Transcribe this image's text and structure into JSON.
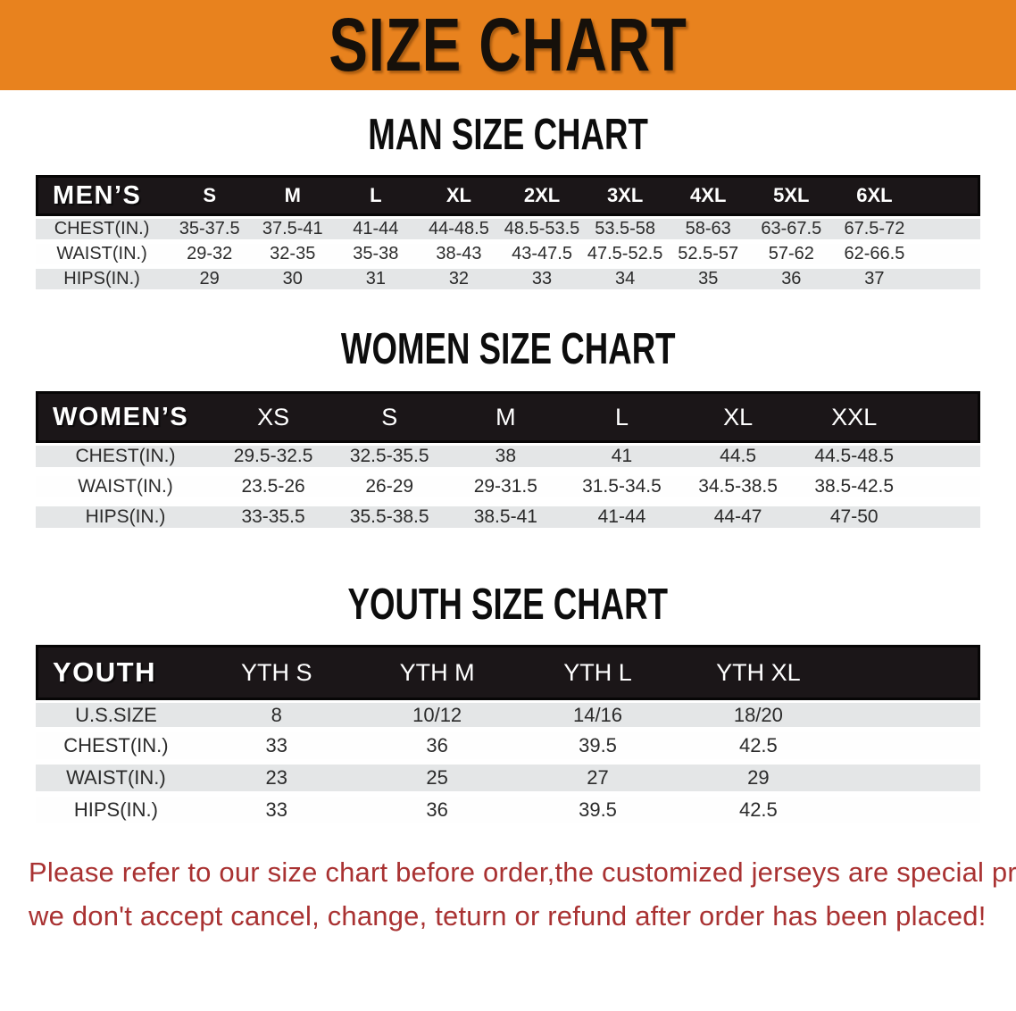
{
  "banner": {
    "title": "SIZE CHART"
  },
  "sections": [
    {
      "id": "men",
      "heading": "MAN SIZE CHART",
      "table": {
        "header_label": "MEN’S",
        "columns": [
          "S",
          "M",
          "L",
          "XL",
          "2XL",
          "3XL",
          "4XL",
          "5XL",
          "6XL"
        ],
        "rows": [
          {
            "label": "CHEST(IN.)",
            "values": [
              "35-37.5",
              "37.5-41",
              "41-44",
              "44-48.5",
              "48.5-53.5",
              "53.5-58",
              "58-63",
              "63-67.5",
              "67.5-72"
            ]
          },
          {
            "label": "WAIST(IN.)",
            "values": [
              "29-32",
              "32-35",
              "35-38",
              "38-43",
              "43-47.5",
              "47.5-52.5",
              "52.5-57",
              "57-62",
              "62-66.5"
            ]
          },
          {
            "label": "HIPS(IN.)",
            "values": [
              "29",
              "30",
              "31",
              "32",
              "33",
              "34",
              "35",
              "36",
              "37"
            ]
          }
        ]
      }
    },
    {
      "id": "women",
      "heading": "WOMEN SIZE CHART",
      "table": {
        "header_label": "WOMEN’S",
        "columns": [
          "XS",
          "S",
          "M",
          "L",
          "XL",
          "XXL"
        ],
        "rows": [
          {
            "label": "CHEST(IN.)",
            "values": [
              "29.5-32.5",
              "32.5-35.5",
              "38",
              "41",
              "44.5",
              "44.5-48.5"
            ]
          },
          {
            "label": "WAIST(IN.)",
            "values": [
              "23.5-26",
              "26-29",
              "29-31.5",
              "31.5-34.5",
              "34.5-38.5",
              "38.5-42.5"
            ]
          },
          {
            "label": "HIPS(IN.)",
            "values": [
              "33-35.5",
              "35.5-38.5",
              "38.5-41",
              "41-44",
              "44-47",
              "47-50"
            ]
          }
        ]
      }
    },
    {
      "id": "youth",
      "heading": "YOUTH SIZE CHART",
      "table": {
        "header_label": "YOUTH",
        "columns": [
          "YTH S",
          "YTH M",
          "YTH L",
          "YTH XL"
        ],
        "rows": [
          {
            "label": "U.S.SIZE",
            "values": [
              "8",
              "10/12",
              "14/16",
              "18/20"
            ]
          },
          {
            "label": "CHEST(IN.)",
            "values": [
              "33",
              "36",
              "39.5",
              "42.5"
            ]
          },
          {
            "label": "WAIST(IN.)",
            "values": [
              "23",
              "25",
              "27",
              "29"
            ]
          },
          {
            "label": "HIPS(IN.)",
            "values": [
              "33",
              "36",
              "39.5",
              "42.5"
            ]
          }
        ]
      }
    }
  ],
  "notice": {
    "lines": [
      "Please refer to our size chart before order,the customized jerseys are special products,",
      "we don't accept cancel, change, teturn or refund after order has been placed!"
    ]
  },
  "colors": {
    "banner_orange": "#E8821E",
    "header_black": "#1B1618",
    "row_gray": "#E4E6E7",
    "notice_red": "#A93232"
  }
}
